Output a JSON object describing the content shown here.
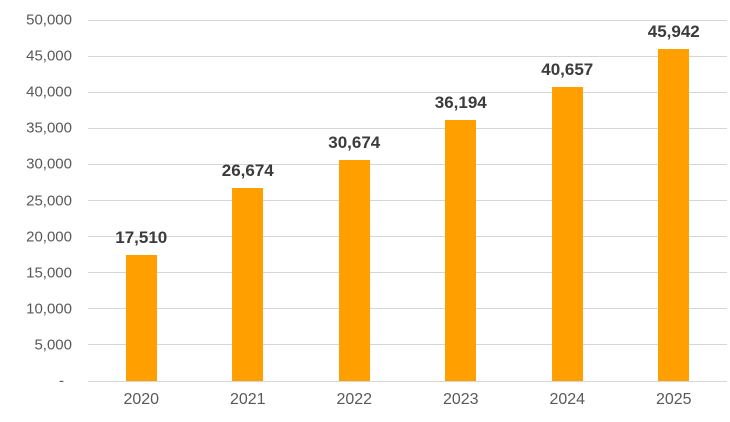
{
  "chart_data": {
    "type": "bar",
    "title": "",
    "xlabel": "",
    "ylabel": "",
    "categories": [
      "2020",
      "2021",
      "2022",
      "2023",
      "2024",
      "2025"
    ],
    "values": [
      17510,
      26674,
      30674,
      36194,
      40657,
      45942
    ],
    "data_labels": [
      "17,510",
      "26,674",
      "30,674",
      "36,194",
      "40,657",
      "45,942"
    ],
    "ylim": [
      0,
      50000
    ],
    "ytick_interval": 5000,
    "ytick_labels_bottom_to_top": [
      "-",
      "5,000",
      "10,000",
      "15,000",
      "20,000",
      "25,000",
      "30,000",
      "35,000",
      "40,000",
      "45,000",
      "50,000"
    ],
    "grid": true,
    "legend": "none",
    "colors": {
      "bar": "#FFA000",
      "gridline": "#D6D6D6",
      "data_label_text": "#3B3B3B",
      "axis_tick_text": "#595959",
      "background": "#FFFFFF"
    }
  }
}
